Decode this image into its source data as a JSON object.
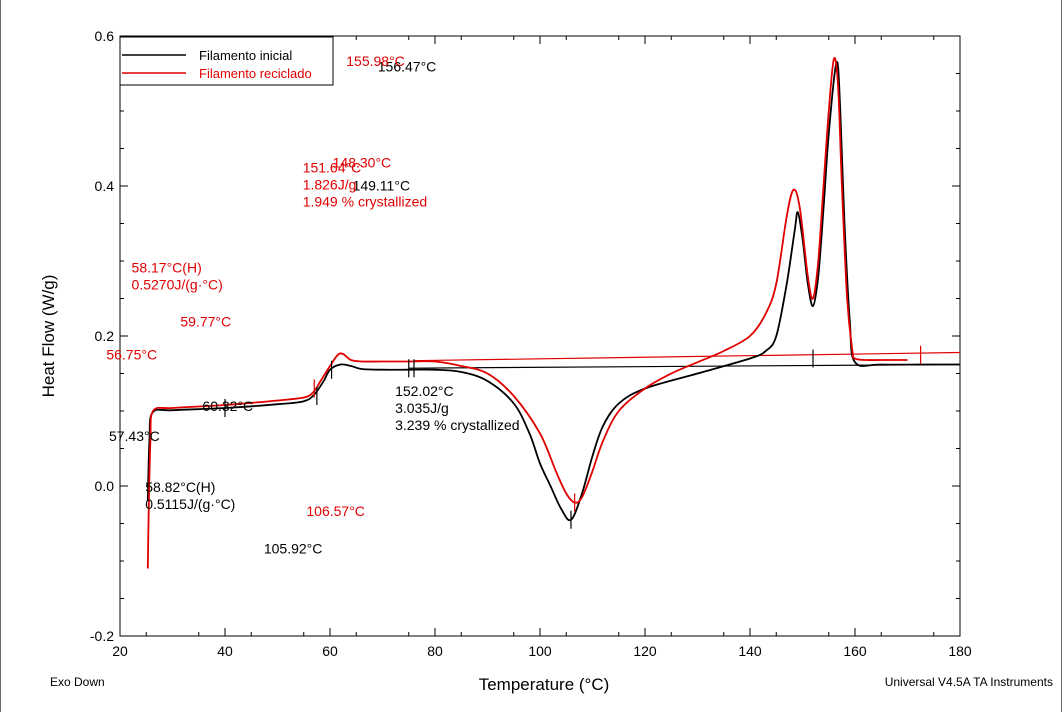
{
  "chart_data": {
    "type": "line",
    "xlabel": "Temperature (°C)",
    "ylabel": "Heat Flow (W/g)",
    "xlim": [
      20,
      180
    ],
    "ylim": [
      -0.2,
      0.6
    ],
    "x_ticks": [
      "20",
      "40",
      "60",
      "80",
      "100",
      "120",
      "140",
      "160",
      "180"
    ],
    "y_ticks": [
      "-0.2",
      "0.0",
      "0.2",
      "0.4",
      "0.6"
    ],
    "x_tick_values": [
      20,
      40,
      60,
      80,
      100,
      120,
      140,
      160,
      180
    ],
    "y_tick_values": [
      -0.2,
      0.0,
      0.2,
      0.4,
      0.6
    ],
    "grid": false,
    "legend_position": "top-left",
    "footer_left": "Exo Down",
    "footer_right": "Universal V4.5A TA Instruments",
    "series": [
      {
        "name": "Filamento inicial",
        "color": "#000000",
        "points": [
          [
            25.3,
            -0.02
          ],
          [
            25.6,
            0.06
          ],
          [
            26.2,
            0.098
          ],
          [
            30,
            0.101
          ],
          [
            40,
            0.104
          ],
          [
            50,
            0.109
          ],
          [
            55,
            0.113
          ],
          [
            57,
            0.122
          ],
          [
            58.8,
            0.14
          ],
          [
            60,
            0.155
          ],
          [
            62,
            0.162
          ],
          [
            64,
            0.16
          ],
          [
            66,
            0.156
          ],
          [
            70,
            0.155
          ],
          [
            75,
            0.155
          ],
          [
            80,
            0.155
          ],
          [
            85,
            0.152
          ],
          [
            90,
            0.14
          ],
          [
            95,
            0.11
          ],
          [
            98,
            0.07
          ],
          [
            100,
            0.03
          ],
          [
            102,
            0.0
          ],
          [
            104,
            -0.03
          ],
          [
            105.9,
            -0.045
          ],
          [
            108,
            -0.01
          ],
          [
            110,
            0.04
          ],
          [
            112,
            0.08
          ],
          [
            115,
            0.11
          ],
          [
            120,
            0.13
          ],
          [
            130,
            0.15
          ],
          [
            140,
            0.17
          ],
          [
            143,
            0.18
          ],
          [
            145,
            0.2
          ],
          [
            147,
            0.27
          ],
          [
            148.5,
            0.34
          ],
          [
            149.1,
            0.365
          ],
          [
            150,
            0.33
          ],
          [
            151,
            0.27
          ],
          [
            152,
            0.24
          ],
          [
            153,
            0.28
          ],
          [
            154,
            0.37
          ],
          [
            155,
            0.47
          ],
          [
            156.5,
            0.565
          ],
          [
            157.2,
            0.5
          ],
          [
            158,
            0.35
          ],
          [
            159,
            0.22
          ],
          [
            160,
            0.165
          ],
          [
            165,
            0.162
          ],
          [
            175,
            0.162
          ],
          [
            180,
            0.162
          ]
        ]
      },
      {
        "name": "Filamento reciclado",
        "color": "#e00000",
        "points": [
          [
            25.3,
            -0.11
          ],
          [
            25.5,
            -0.02
          ],
          [
            25.8,
            0.06
          ],
          [
            26.3,
            0.1
          ],
          [
            30,
            0.104
          ],
          [
            40,
            0.108
          ],
          [
            50,
            0.114
          ],
          [
            55,
            0.118
          ],
          [
            56.8,
            0.125
          ],
          [
            58.2,
            0.14
          ],
          [
            60,
            0.16
          ],
          [
            61.5,
            0.175
          ],
          [
            62.5,
            0.176
          ],
          [
            64,
            0.168
          ],
          [
            66,
            0.166
          ],
          [
            70,
            0.166
          ],
          [
            75,
            0.166
          ],
          [
            80,
            0.166
          ],
          [
            85,
            0.16
          ],
          [
            90,
            0.15
          ],
          [
            95,
            0.12
          ],
          [
            100,
            0.07
          ],
          [
            103,
            0.02
          ],
          [
            105,
            -0.01
          ],
          [
            106.6,
            -0.022
          ],
          [
            108,
            -0.015
          ],
          [
            110,
            0.02
          ],
          [
            112,
            0.06
          ],
          [
            115,
            0.1
          ],
          [
            120,
            0.13
          ],
          [
            125,
            0.15
          ],
          [
            130,
            0.165
          ],
          [
            135,
            0.18
          ],
          [
            140,
            0.2
          ],
          [
            143,
            0.23
          ],
          [
            145,
            0.27
          ],
          [
            147,
            0.36
          ],
          [
            148.3,
            0.395
          ],
          [
            149.5,
            0.37
          ],
          [
            151,
            0.28
          ],
          [
            152,
            0.25
          ],
          [
            153,
            0.3
          ],
          [
            154,
            0.4
          ],
          [
            155,
            0.5
          ],
          [
            156,
            0.57
          ],
          [
            156.8,
            0.53
          ],
          [
            157.5,
            0.4
          ],
          [
            158.5,
            0.25
          ],
          [
            159.5,
            0.18
          ],
          [
            160,
            0.17
          ],
          [
            162,
            0.168
          ],
          [
            165,
            0.168
          ],
          [
            170,
            0.168
          ]
        ]
      }
    ],
    "baselines": [
      {
        "series": "Filamento inicial",
        "color": "#000000",
        "points": [
          [
            75,
            0.157
          ],
          [
            180,
            0.162
          ]
        ]
      },
      {
        "series": "Filamento reciclado",
        "color": "#e00000",
        "points": [
          [
            76,
            0.167
          ],
          [
            180,
            0.178
          ]
        ]
      }
    ],
    "markers": [
      {
        "color": "#000000",
        "x": 40,
        "y": 0.104
      },
      {
        "color": "#000000",
        "x": 57.5,
        "y": 0.12
      },
      {
        "color": "#000000",
        "x": 60.3,
        "y": 0.155
      },
      {
        "color": "#000000",
        "x": 75,
        "y": 0.157
      },
      {
        "color": "#000000",
        "x": 76,
        "y": 0.157
      },
      {
        "color": "#000000",
        "x": 105.9,
        "y": -0.045
      },
      {
        "color": "#000000",
        "x": 152,
        "y": 0.17
      },
      {
        "color": "#e00000",
        "x": 57,
        "y": 0.13
      },
      {
        "color": "#e00000",
        "x": 106.6,
        "y": -0.022
      },
      {
        "color": "#e00000",
        "x": 172.5,
        "y": 0.175
      }
    ],
    "annotations": [
      {
        "color": "#000000",
        "x": 17.9,
        "y": 0.06,
        "lines": [
          "57.43°C"
        ]
      },
      {
        "color": "#000000",
        "x": 24.8,
        "y": -0.008,
        "lines": [
          "58.82°C(H)",
          "0.5115J/(g·°C)"
        ]
      },
      {
        "color": "#000000",
        "x": 35.7,
        "y": 0.1,
        "lines": [
          "60.32°C"
        ]
      },
      {
        "color": "#000000",
        "x": 47.4,
        "y": -0.09,
        "lines": [
          "105.92°C"
        ]
      },
      {
        "color": "#000000",
        "x": 72.4,
        "y": 0.12,
        "lines": [
          "152.02°C",
          "3.035J/g",
          "3.239 % crystallized"
        ]
      },
      {
        "color": "#000000",
        "x": 64.3,
        "y": 0.394,
        "lines": [
          "149.11°C"
        ]
      },
      {
        "color": "#000000",
        "x": 69.1,
        "y": 0.553,
        "lines": [
          "156.47°C"
        ]
      },
      {
        "color": "#e00000",
        "x": 17.4,
        "y": 0.169,
        "lines": [
          "56.75°C"
        ]
      },
      {
        "color": "#e00000",
        "x": 22.2,
        "y": 0.285,
        "lines": [
          "58.17°C(H)",
          "0.5270J/(g·°C)"
        ]
      },
      {
        "color": "#e00000",
        "x": 31.5,
        "y": 0.213,
        "lines": [
          "59.77°C"
        ]
      },
      {
        "color": "#e00000",
        "x": 55.5,
        "y": -0.04,
        "lines": [
          "106.57°C"
        ]
      },
      {
        "color": "#e00000",
        "x": 54.8,
        "y": 0.418,
        "lines": [
          "151.64°C",
          "1.826J/g",
          "1.949 % crystallized"
        ]
      },
      {
        "color": "#e00000",
        "x": 60.5,
        "y": 0.425,
        "lines": [
          "148.30°C"
        ]
      },
      {
        "color": "#e00000",
        "x": 63.1,
        "y": 0.56,
        "lines": [
          "155.98°C"
        ]
      }
    ]
  }
}
